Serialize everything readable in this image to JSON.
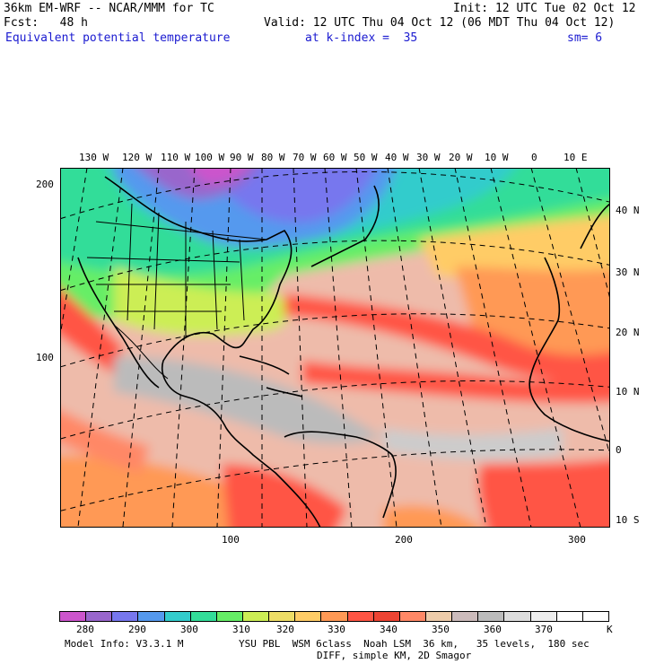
{
  "header": {
    "model": "36km EM-WRF -- NCAR/MMM for TC",
    "init": "Init: 12 UTC Tue 02 Oct 12",
    "fcst": "Fcst:   48 h",
    "valid": "Valid: 12 UTC Thu 04 Oct 12 (06 MDT Thu 04 Oct 12)",
    "field": "Equivalent potential temperature",
    "level": "at k-index =  35",
    "smooth": "sm= 6"
  },
  "map": {
    "top_lon_labels": [
      "130 W",
      "120 W",
      "110 W",
      "100 W",
      "90 W",
      "80 W",
      "70 W",
      "60 W",
      "50 W",
      "40 W",
      "30 W",
      "20 W",
      "10 W",
      "0",
      "10 E"
    ],
    "right_lat_labels": [
      "40 N",
      "30 N",
      "20 N",
      "10 N",
      "0",
      "10 S"
    ],
    "left_grid_labels": [
      "200",
      "100"
    ],
    "bottom_grid_labels": [
      "100",
      "200",
      "300"
    ]
  },
  "colorbar": {
    "colors": [
      "#cc55cc",
      "#9966cc",
      "#7777ee",
      "#5599ee",
      "#33cccc",
      "#33dd99",
      "#66ee66",
      "#ccee55",
      "#eedd66",
      "#ffcc66",
      "#ff9955",
      "#ff5544",
      "#ee4433",
      "#ff8866",
      "#eeccaa",
      "#ccbbbb",
      "#bbbbbb",
      "#dddddd",
      "#eeeeee",
      "#ffffff",
      "#ffffff"
    ],
    "labels": [
      "280",
      "290",
      "300",
      "310",
      "320",
      "330",
      "340",
      "350",
      "360",
      "370"
    ],
    "unit": "K"
  },
  "footer": {
    "model_info": "Model Info: V3.3.1 M",
    "physics": "YSU PBL  WSM 6class  Noah LSM  36 km,   35 levels,  180 sec",
    "diff": "DIFF, simple KM, 2D Smagor"
  }
}
